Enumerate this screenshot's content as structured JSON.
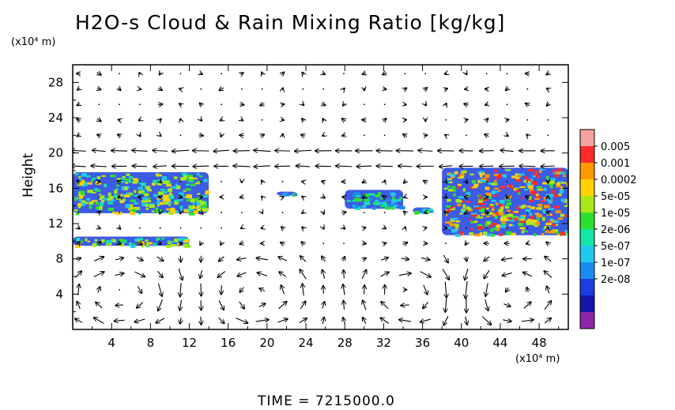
{
  "chart_data": {
    "type": "heatmap",
    "title": "H2O-s Cloud & Rain Mixing Ratio [kg/kg]",
    "ylabel": "Height",
    "x_unit": "(x10⁴ m)",
    "y_unit": "(x10⁴ m)",
    "footer": "TIME = 7215000.0",
    "xlim": [
      0,
      51
    ],
    "ylim": [
      0,
      30
    ],
    "x_ticks": [
      "4",
      "8",
      "12",
      "16",
      "20",
      "24",
      "28",
      "32",
      "36",
      "40",
      "44",
      "48"
    ],
    "y_ticks": [
      "4",
      "8",
      "12",
      "16",
      "20",
      "24",
      "28"
    ],
    "colorbar": {
      "labels": [
        "0.005",
        "0.001",
        "0.0002",
        "5e-05",
        "1e-05",
        "2e-06",
        "5e-07",
        "1e-07",
        "2e-08"
      ],
      "colors": [
        "#f7a3a3",
        "#ff2a2a",
        "#ff9900",
        "#ffd200",
        "#a8e81a",
        "#2ee02e",
        "#14e6a8",
        "#22c8f0",
        "#1a8cf0",
        "#1b3ee0",
        "#1414a8",
        "#8c28a8"
      ]
    },
    "clouds": [
      {
        "x": [
          0,
          14
        ],
        "y": [
          13,
          18
        ],
        "level": "mid"
      },
      {
        "x": [
          0,
          12
        ],
        "y": [
          9.3,
          10.7
        ],
        "level": "mid"
      },
      {
        "x": [
          21,
          23
        ],
        "y": [
          15,
          15.8
        ],
        "level": "low"
      },
      {
        "x": [
          28,
          34
        ],
        "y": [
          13.5,
          16
        ],
        "level": "low"
      },
      {
        "x": [
          35,
          37
        ],
        "y": [
          13,
          14
        ],
        "level": "low"
      },
      {
        "x": [
          38,
          51
        ],
        "y": [
          10.5,
          18.5
        ],
        "level": "high"
      }
    ],
    "wind_circulations": [
      {
        "center_x": 5,
        "center_y": 4,
        "sense": "cw"
      },
      {
        "center_x": 19,
        "center_y": 4,
        "sense": "ccw"
      },
      {
        "center_x": 35,
        "center_y": 4,
        "sense": "cw"
      },
      {
        "center_x": 45,
        "center_y": 4,
        "sense": "ccw"
      }
    ]
  }
}
